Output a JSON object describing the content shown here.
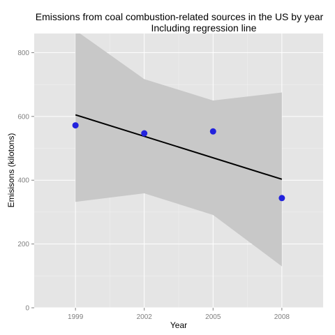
{
  "chart_data": {
    "type": "scatter",
    "title": "Emissions from coal combustion-related sources in the US by year",
    "subtitle": "Including regression line",
    "xlabel": "Year",
    "ylabel": "Emisisons (kilotons)",
    "x_ticks": [
      1999,
      2002,
      2005,
      2008
    ],
    "y_ticks": [
      0,
      200,
      400,
      600,
      800
    ],
    "xlim": [
      1997.2,
      2009.8
    ],
    "ylim": [
      0,
      860
    ],
    "grid": true,
    "series": [
      {
        "x": [
          1999,
          2002,
          2005,
          2008
        ],
        "y": [
          572,
          547,
          553,
          344
        ]
      }
    ],
    "regression": {
      "x": [
        1999,
        2008
      ],
      "y": [
        605,
        403
      ]
    },
    "confidence_band": {
      "x": [
        1999,
        2002,
        2005,
        2008
      ],
      "lower": [
        332,
        359,
        291,
        130
      ],
      "upper": [
        870,
        717,
        650,
        675
      ]
    },
    "colors": {
      "panel": "#e5e5e5",
      "grid": "#ffffff",
      "band": "#c8c8c8",
      "line": "#000000",
      "point": "#2222dd"
    }
  }
}
